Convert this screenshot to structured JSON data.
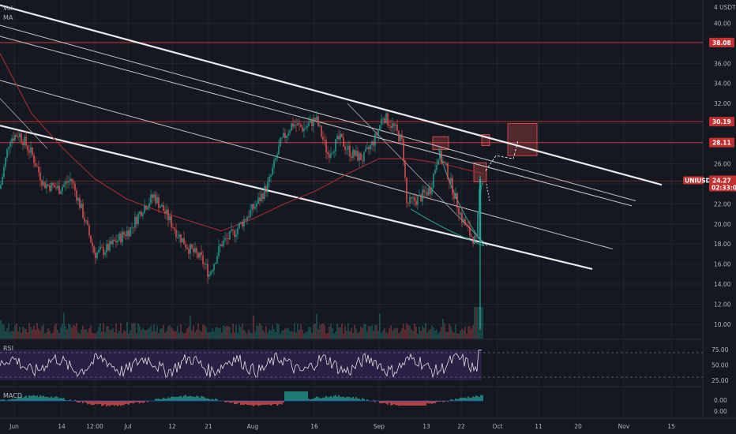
{
  "top_label": "4 USDT",
  "indicators": {
    "vol": "Vol",
    "ma": "MA",
    "rsi": "RSI",
    "macd": "MACD"
  },
  "price_levels": [
    {
      "label": "38.08",
      "value": 38.08,
      "color": "#c2302f"
    },
    {
      "label": "30.19",
      "value": 30.19,
      "color": "#c2302f"
    },
    {
      "label": "28.11",
      "value": 28.11,
      "color": "#c2302f"
    }
  ],
  "current_price": {
    "symbol": "UNIUSDT",
    "value_label": "24.27",
    "value": 24.27,
    "countdown": "02:33:02",
    "color": "#c2302f"
  },
  "colors": {
    "background": "#141821",
    "candle_up": "#26a69a",
    "candle_down": "#ef5350",
    "grid": "#1f2430",
    "rsi_band": "#2a1f45",
    "ma_line": "#9b2a2a"
  },
  "chart_data": {
    "type": "candlestick",
    "y_axis": {
      "min": 8.5,
      "max": 42,
      "ticks": [
        "40.00",
        "38.00",
        "36.00",
        "34.00",
        "32.00",
        "30.00",
        "28.00",
        "26.00",
        "24.00",
        "22.00",
        "20.00",
        "18.00",
        "16.00",
        "14.00",
        "12.00",
        "10.00"
      ]
    },
    "x_ticks": [
      "Jun",
      "14",
      "12:00",
      "Jul",
      "12",
      "21",
      "Aug",
      "16",
      "Sep",
      "13",
      "22",
      "Oct",
      "11",
      "20",
      "Nov",
      "15"
    ],
    "rsi": {
      "ticks": [
        "75.00",
        "50.00",
        "25.00"
      ],
      "upper": 70,
      "lower": 30
    },
    "macd": {
      "ticks": [
        "0.00",
        "0.00"
      ]
    },
    "price_path": [
      {
        "x": 0,
        "y": 23.5
      },
      {
        "x": 12,
        "y": 28.5
      },
      {
        "x": 24,
        "y": 29.0
      },
      {
        "x": 40,
        "y": 27.0
      },
      {
        "x": 55,
        "y": 24.0
      },
      {
        "x": 75,
        "y": 23.5
      },
      {
        "x": 90,
        "y": 24.5
      },
      {
        "x": 105,
        "y": 21.0
      },
      {
        "x": 120,
        "y": 17.0
      },
      {
        "x": 135,
        "y": 17.5
      },
      {
        "x": 150,
        "y": 18.5
      },
      {
        "x": 165,
        "y": 19.5
      },
      {
        "x": 180,
        "y": 21.5
      },
      {
        "x": 195,
        "y": 22.8
      },
      {
        "x": 210,
        "y": 21.0
      },
      {
        "x": 225,
        "y": 19.0
      },
      {
        "x": 240,
        "y": 17.5
      },
      {
        "x": 255,
        "y": 16.5
      },
      {
        "x": 265,
        "y": 15.0
      },
      {
        "x": 280,
        "y": 18.0
      },
      {
        "x": 295,
        "y": 19.0
      },
      {
        "x": 310,
        "y": 20.5
      },
      {
        "x": 325,
        "y": 22.0
      },
      {
        "x": 340,
        "y": 24.0
      },
      {
        "x": 355,
        "y": 28.0
      },
      {
        "x": 370,
        "y": 30.0
      },
      {
        "x": 385,
        "y": 29.5
      },
      {
        "x": 400,
        "y": 30.5
      },
      {
        "x": 415,
        "y": 27.0
      },
      {
        "x": 430,
        "y": 28.5
      },
      {
        "x": 445,
        "y": 27.0
      },
      {
        "x": 460,
        "y": 26.5
      },
      {
        "x": 475,
        "y": 28.5
      },
      {
        "x": 485,
        "y": 30.8
      },
      {
        "x": 500,
        "y": 29.5
      },
      {
        "x": 510,
        "y": 28.0
      },
      {
        "x": 515,
        "y": 22.0
      },
      {
        "x": 530,
        "y": 22.5
      },
      {
        "x": 545,
        "y": 23.5
      },
      {
        "x": 555,
        "y": 27.0
      },
      {
        "x": 565,
        "y": 25.5
      },
      {
        "x": 575,
        "y": 23.0
      },
      {
        "x": 585,
        "y": 20.5
      },
      {
        "x": 595,
        "y": 19.0
      },
      {
        "x": 603,
        "y": 18.2
      },
      {
        "x": 608,
        "y": 24.5
      },
      {
        "x": 612,
        "y": 24.3
      }
    ],
    "ma_path": [
      {
        "x": 0,
        "y": 37.0
      },
      {
        "x": 40,
        "y": 31.0
      },
      {
        "x": 80,
        "y": 27.5
      },
      {
        "x": 120,
        "y": 24.5
      },
      {
        "x": 160,
        "y": 22.5
      },
      {
        "x": 200,
        "y": 21.3
      },
      {
        "x": 240,
        "y": 20.3
      },
      {
        "x": 280,
        "y": 19.3
      },
      {
        "x": 320,
        "y": 20.5
      },
      {
        "x": 360,
        "y": 22.0
      },
      {
        "x": 400,
        "y": 23.3
      },
      {
        "x": 440,
        "y": 25.0
      },
      {
        "x": 480,
        "y": 26.5
      },
      {
        "x": 520,
        "y": 26.5
      },
      {
        "x": 560,
        "y": 26.0
      },
      {
        "x": 612,
        "y": 25.0
      }
    ],
    "trendlines": [
      {
        "x1": 0,
        "y1": 41.8,
        "x2": 838,
        "y2": 23.9,
        "width": 2.2,
        "color": "#ffffff"
      },
      {
        "x1": 0,
        "y1": 29.8,
        "x2": 750,
        "y2": 15.5,
        "width": 2.2,
        "color": "#ffffff"
      },
      {
        "x1": 0,
        "y1": 39.8,
        "x2": 805,
        "y2": 22.3,
        "width": 1,
        "color": "#d8d8d8"
      },
      {
        "x1": 0,
        "y1": 38.7,
        "x2": 800,
        "y2": 21.8,
        "width": 1,
        "color": "#d8d8d8"
      },
      {
        "x1": 0,
        "y1": 34.3,
        "x2": 776,
        "y2": 17.5,
        "width": 1,
        "color": "#d8d8d8"
      },
      {
        "x1": 440,
        "y1": 32.0,
        "x2": 617,
        "y2": 17.8,
        "width": 0.8,
        "color": "#bdbdbd"
      },
      {
        "x1": 0,
        "y1": 32.5,
        "x2": 60,
        "y2": 27.5,
        "width": 0.8,
        "color": "#bdbdbd"
      }
    ],
    "target_boxes": [
      {
        "x1": 643,
        "y1": 26.8,
        "x2": 680,
        "y2": 30.0,
        "color": "#ef5350"
      },
      {
        "x1": 548,
        "y1": 27.4,
        "x2": 568,
        "y2": 28.7,
        "color": "#ef5350"
      },
      {
        "x1": 600,
        "y1": 24.2,
        "x2": 616,
        "y2": 26.1,
        "color": "#ef5350"
      },
      {
        "x1": 610,
        "y1": 27.8,
        "x2": 620,
        "y2": 28.9,
        "color": "#ef5350"
      }
    ]
  }
}
